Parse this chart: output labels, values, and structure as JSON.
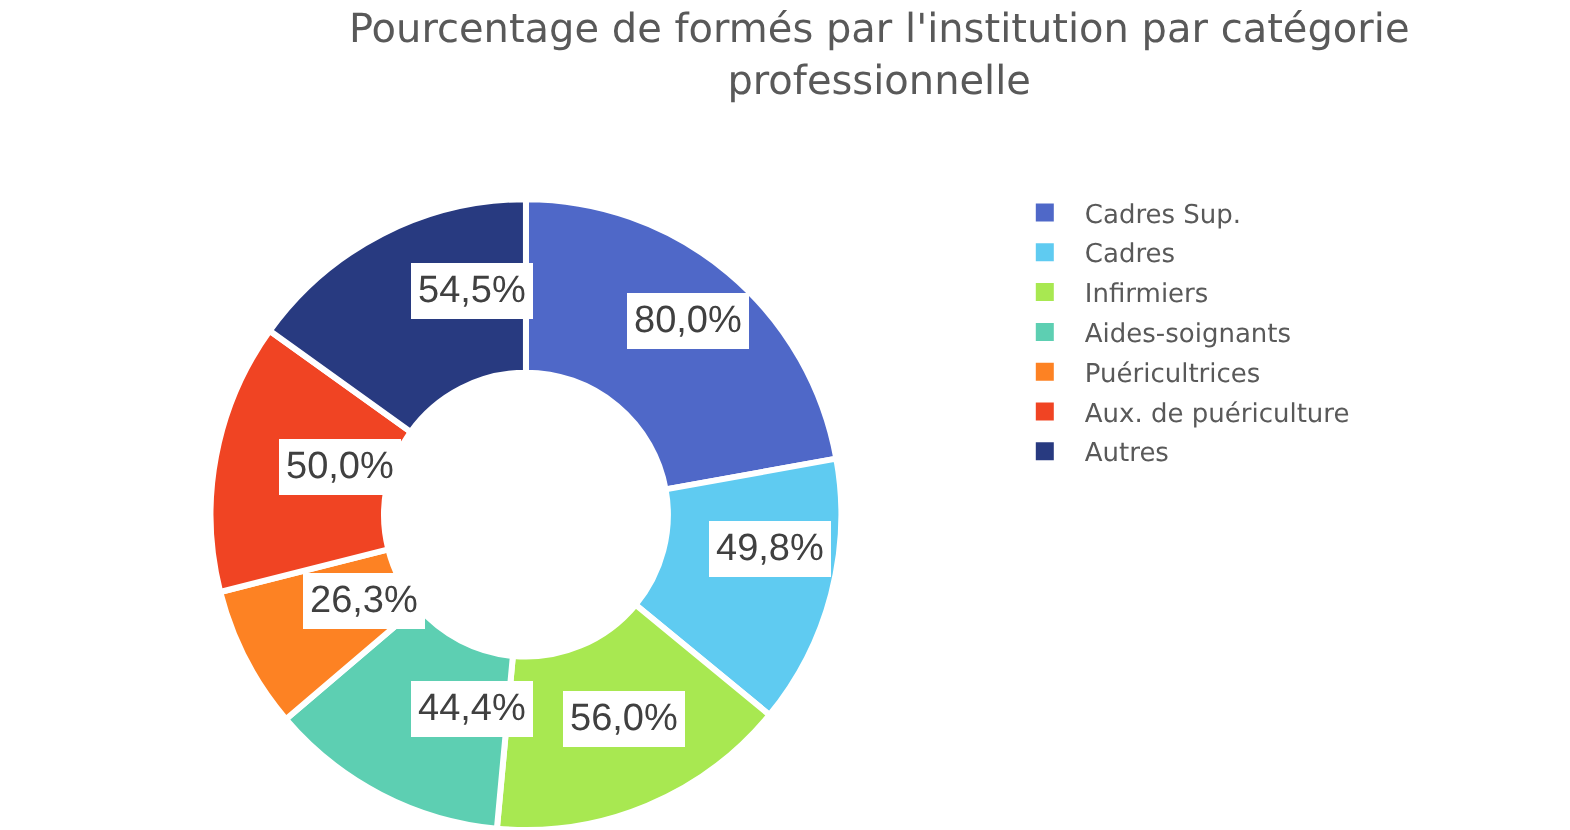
{
  "chart_data": {
    "type": "donut",
    "title": "Pourcentage de formés par l'institution par catégorie professionnelle",
    "categories": [
      "Cadres Sup.",
      "Cadres",
      "Infirmiers",
      "Aides-soignants",
      "Puéricultrices",
      "Aux. de puériculture",
      "Autres"
    ],
    "values": [
      80.0,
      49.8,
      56.0,
      44.4,
      26.3,
      50.0,
      54.5
    ],
    "value_labels": [
      "80,0%",
      "49,8%",
      "56,0%",
      "44,4%",
      "26,3%",
      "50,0%",
      "54,5%"
    ],
    "colors": [
      "#4f68c8",
      "#5fcbf1",
      "#a8e851",
      "#5dcfb2",
      "#fd8223",
      "#f04423",
      "#283a80"
    ],
    "legend": "right"
  }
}
